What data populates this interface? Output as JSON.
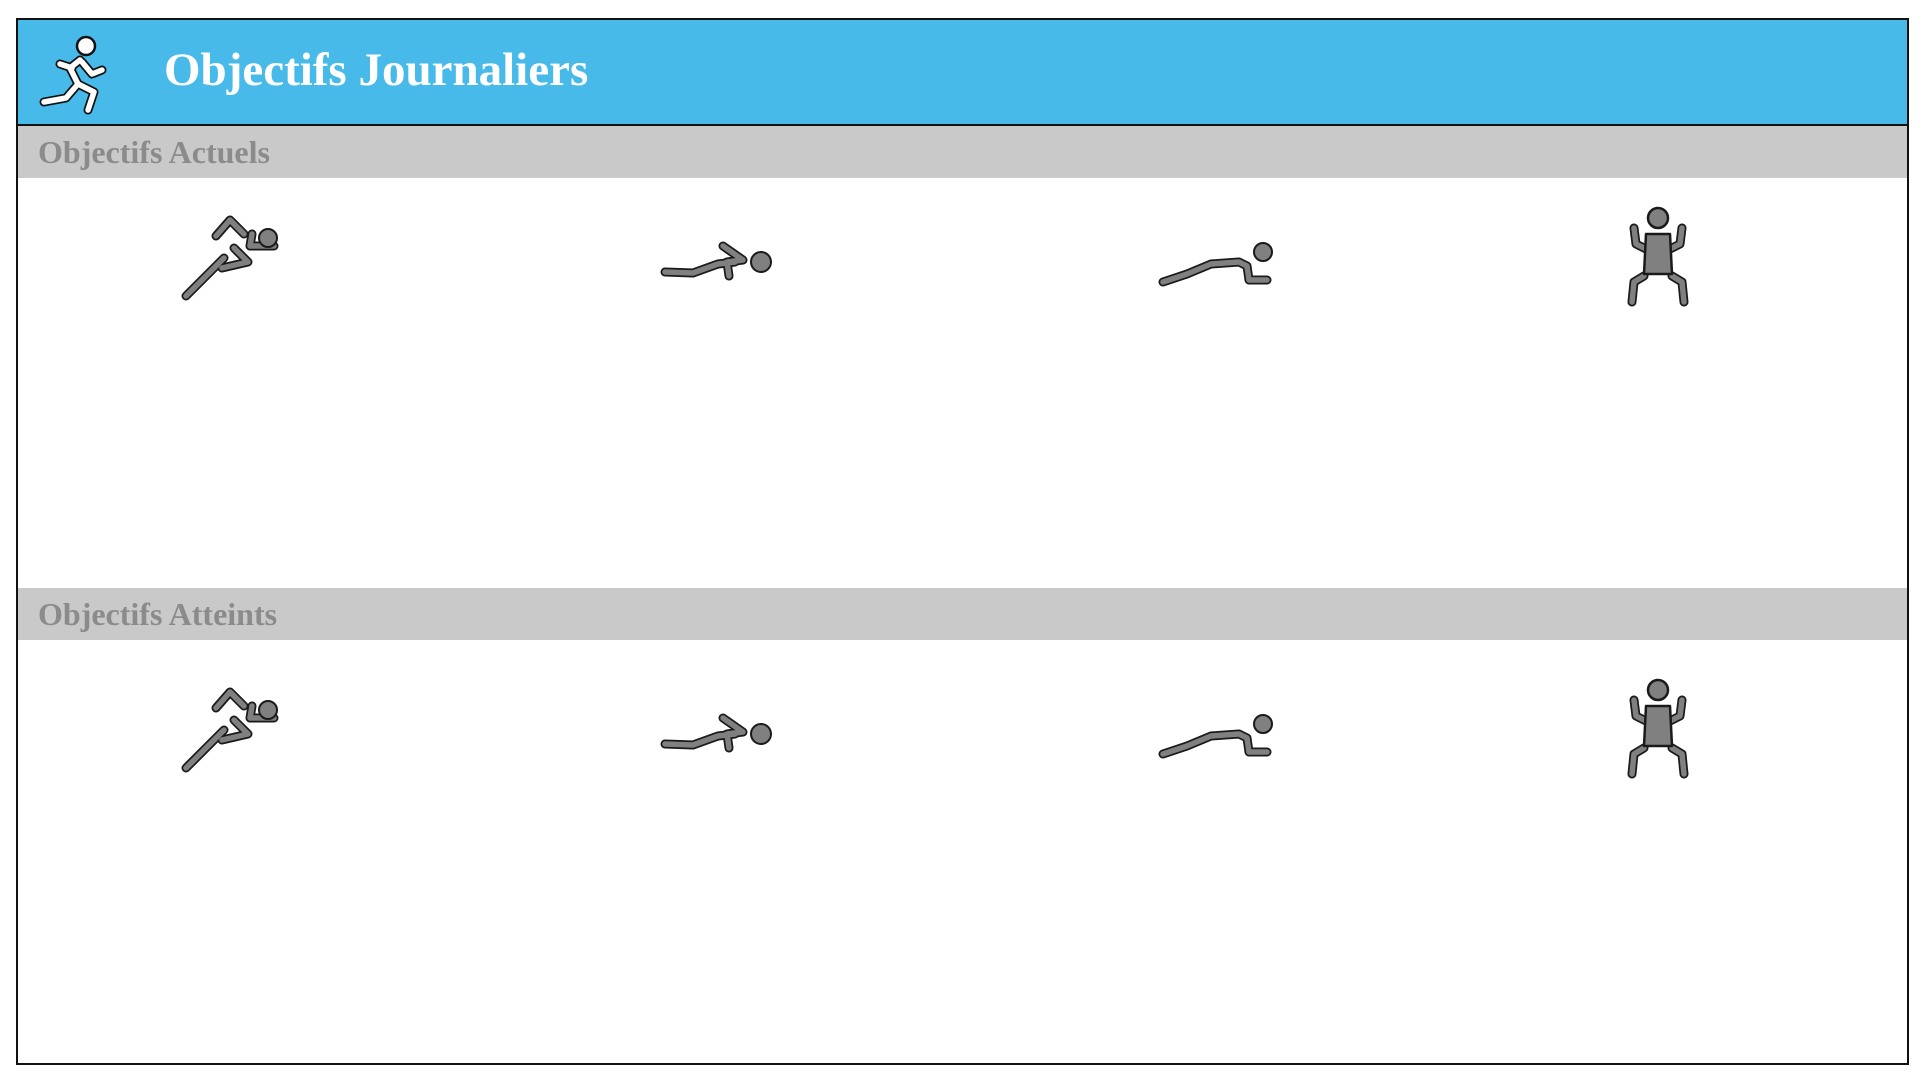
{
  "header": {
    "title": "Objectifs Journaliers",
    "icon": "running-man-icon",
    "background_color": "#47baea",
    "title_color": "#ffffff"
  },
  "sections": [
    {
      "title": "Objectifs Actuels",
      "icons": [
        "sprinter-icon",
        "plank-icon",
        "push-up-icon",
        "squat-icon"
      ]
    },
    {
      "title": "Objectifs Atteints",
      "icons": [
        "sprinter-icon",
        "plank-icon",
        "push-up-icon",
        "squat-icon"
      ]
    }
  ],
  "colors": {
    "section_bar": "#c9c9c9",
    "section_title": "#8b8b8b",
    "icon_fill": "#808080",
    "icon_stroke": "#1a1a1a"
  }
}
